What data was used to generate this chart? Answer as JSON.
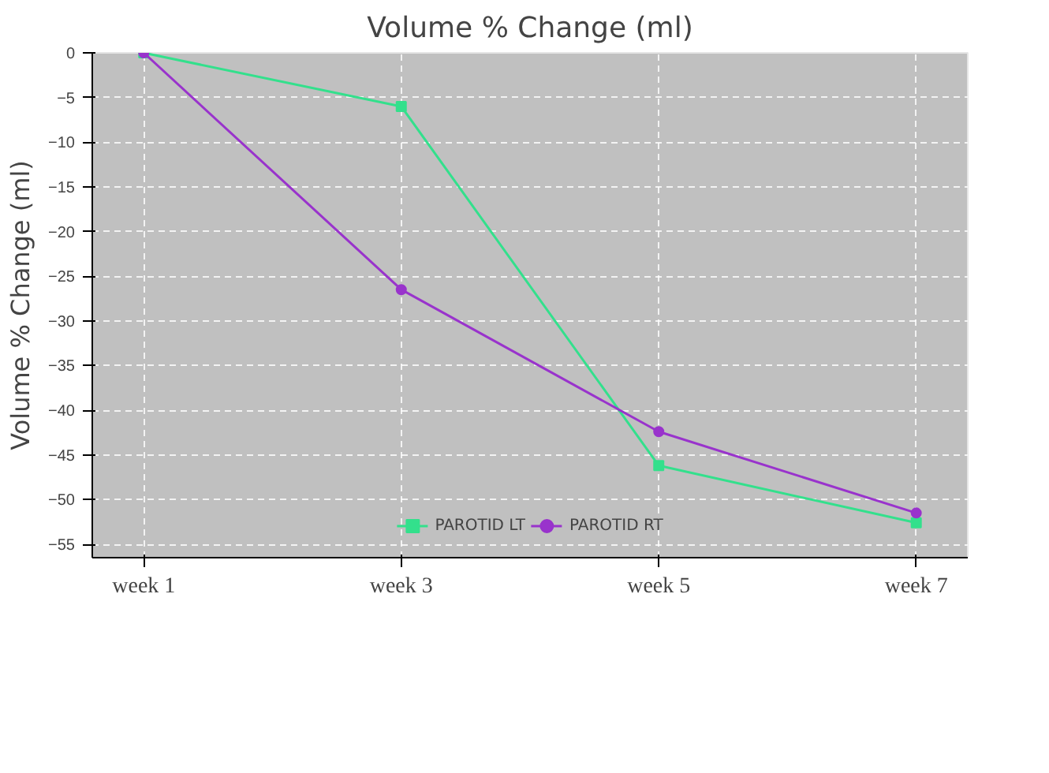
{
  "chart_data": {
    "type": "line",
    "title": "Volume % Change (ml)",
    "ylabel": "Volume % Change (ml)",
    "categories": [
      "week 1",
      "week 3",
      "week 5",
      "week 7"
    ],
    "series": [
      {
        "name": "PAROTID LT",
        "color": "#33e08c",
        "values": [
          0,
          -6,
          -46.2,
          -52.6
        ],
        "marker": "square"
      },
      {
        "name": "PAROTID RT",
        "color": "#9933cc",
        "values": [
          0,
          -26.5,
          -42.4,
          -51.5
        ],
        "marker": "circle"
      }
    ],
    "ylim": [
      -56.5,
      0
    ],
    "yticks": [
      0,
      -5,
      -10,
      -15,
      -20,
      -25,
      -30,
      -35,
      -40,
      -45,
      -50,
      -55
    ],
    "grid": true,
    "legend": "bottom",
    "line_style": "solid"
  }
}
